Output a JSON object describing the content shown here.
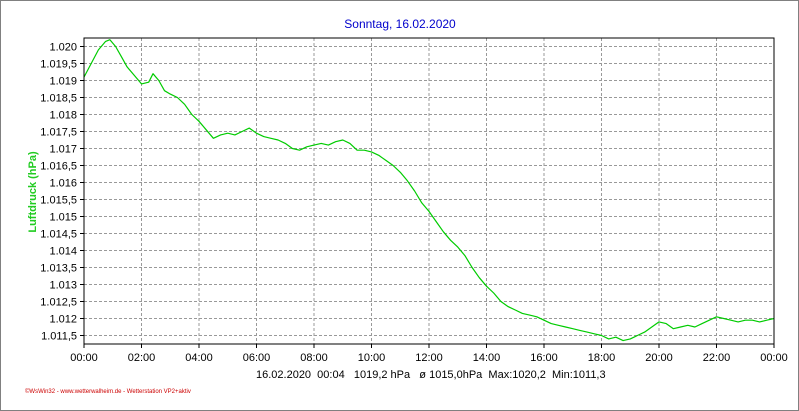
{
  "chart_data": {
    "type": "line",
    "title": "Sonntag, 16.02.2020",
    "ylabel": "Luftdruck (hPa)",
    "xlabel": "",
    "x_ticks": [
      "00:00",
      "02:00",
      "04:00",
      "06:00",
      "08:00",
      "10:00",
      "12:00",
      "14:00",
      "16:00",
      "18:00",
      "20:00",
      "22:00",
      "00:00"
    ],
    "y_ticks": [
      "1.011,5",
      "1.012",
      "1.012,5",
      "1.013",
      "1.013,5",
      "1.014",
      "1.014,5",
      "1.015",
      "1.015,5",
      "1.016",
      "1.016,5",
      "1.017",
      "1.017,5",
      "1.018",
      "1.018,5",
      "1.019",
      "1.019,5",
      "1.020"
    ],
    "y_tick_values": [
      1011.5,
      1012,
      1012.5,
      1013,
      1013.5,
      1014,
      1014.5,
      1015,
      1015.5,
      1016,
      1016.5,
      1017,
      1017.5,
      1018,
      1018.5,
      1019,
      1019.5,
      1020
    ],
    "xlim": [
      0,
      24
    ],
    "ylim": [
      1011.25,
      1020.25
    ],
    "grid": true,
    "series": [
      {
        "color": "#00cc00",
        "x": [
          0.0,
          0.25,
          0.5,
          0.75,
          0.9,
          1.1,
          1.3,
          1.5,
          1.75,
          2.0,
          2.25,
          2.4,
          2.6,
          2.8,
          3.0,
          3.25,
          3.5,
          3.75,
          4.0,
          4.25,
          4.5,
          4.75,
          5.0,
          5.25,
          5.5,
          5.75,
          6.0,
          6.25,
          6.5,
          6.75,
          7.0,
          7.25,
          7.5,
          7.75,
          8.0,
          8.25,
          8.5,
          8.75,
          9.0,
          9.25,
          9.5,
          9.75,
          10.0,
          10.25,
          10.5,
          10.75,
          11.0,
          11.25,
          11.5,
          11.75,
          12.0,
          12.25,
          12.5,
          12.75,
          13.0,
          13.25,
          13.5,
          13.75,
          14.0,
          14.25,
          14.5,
          14.75,
          15.0,
          15.25,
          15.5,
          15.75,
          16.0,
          16.25,
          16.5,
          16.75,
          17.0,
          17.25,
          17.5,
          17.75,
          18.0,
          18.25,
          18.5,
          18.75,
          19.0,
          19.25,
          19.5,
          19.75,
          20.0,
          20.25,
          20.5,
          20.75,
          21.0,
          21.25,
          21.5,
          21.75,
          22.0,
          22.25,
          22.5,
          22.75,
          23.0,
          23.25,
          23.5,
          23.75,
          24.0
        ],
        "y": [
          1019.1,
          1019.5,
          1019.9,
          1020.15,
          1020.2,
          1020.0,
          1019.7,
          1019.4,
          1019.15,
          1018.9,
          1018.95,
          1019.2,
          1019.0,
          1018.7,
          1018.6,
          1018.5,
          1018.3,
          1018.0,
          1017.8,
          1017.55,
          1017.3,
          1017.4,
          1017.45,
          1017.4,
          1017.5,
          1017.6,
          1017.45,
          1017.35,
          1017.3,
          1017.25,
          1017.15,
          1017.0,
          1016.95,
          1017.05,
          1017.1,
          1017.15,
          1017.1,
          1017.2,
          1017.25,
          1017.15,
          1016.95,
          1016.95,
          1016.9,
          1016.8,
          1016.65,
          1016.5,
          1016.3,
          1016.05,
          1015.75,
          1015.4,
          1015.15,
          1014.85,
          1014.55,
          1014.3,
          1014.1,
          1013.85,
          1013.5,
          1013.2,
          1012.95,
          1012.75,
          1012.5,
          1012.35,
          1012.25,
          1012.15,
          1012.1,
          1012.05,
          1011.95,
          1011.85,
          1011.8,
          1011.75,
          1011.7,
          1011.65,
          1011.6,
          1011.55,
          1011.5,
          1011.4,
          1011.45,
          1011.35,
          1011.4,
          1011.5,
          1011.6,
          1011.75,
          1011.9,
          1011.85,
          1011.7,
          1011.75,
          1011.8,
          1011.75,
          1011.85,
          1011.95,
          1012.05,
          1012.0,
          1011.95,
          1011.9,
          1011.95,
          1011.95,
          1011.9,
          1011.95,
          1012.0
        ]
      }
    ],
    "info_line": "16.02.2020  00:04   1019,2 hPa   ø 1015,0hPa  Max:1020,2  Min:1011,3",
    "footer": "©WsWin32 - www.wetterwalheim.de - Wetterstation VP2+aktiv"
  }
}
